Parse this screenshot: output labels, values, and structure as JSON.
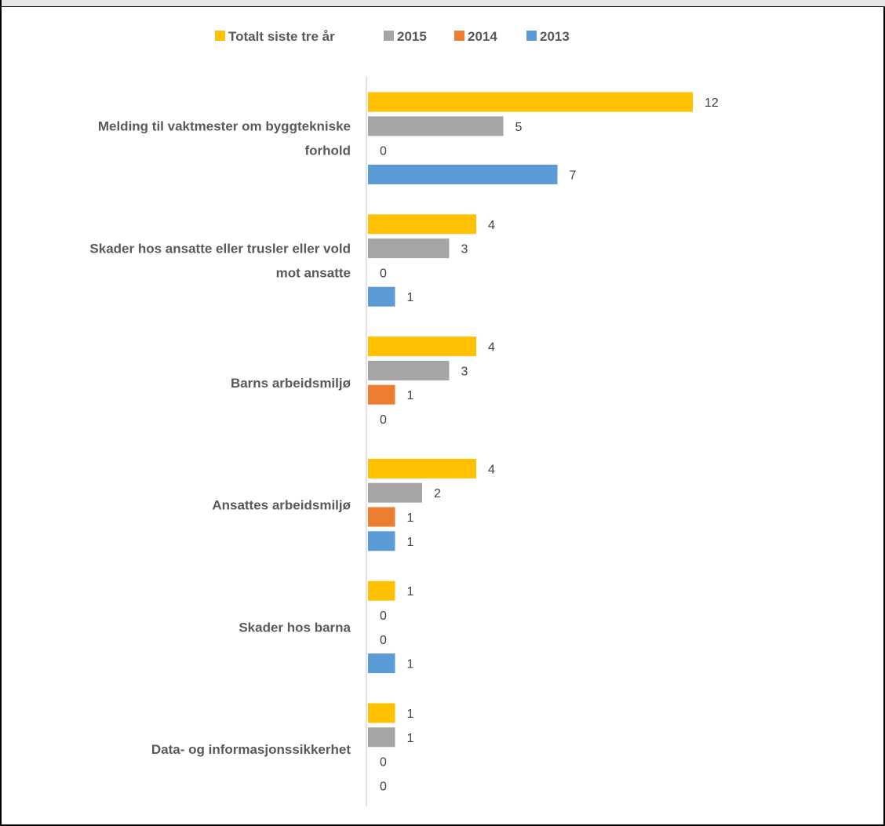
{
  "chart_data": {
    "type": "bar",
    "orientation": "horizontal",
    "categories": [
      [
        "Melding til vaktmester om byggtekniske",
        "forhold"
      ],
      [
        "Skader hos ansatte eller trusler eller vold",
        "mot ansatte"
      ],
      [
        "Barns arbeidsmiljø"
      ],
      [
        "Ansattes arbeidsmiljø"
      ],
      [
        "Skader hos barna"
      ],
      [
        "Data- og informasjonssikkerhet"
      ]
    ],
    "series": [
      {
        "name": "Totalt siste tre år",
        "color": "#ffc000",
        "values": [
          12,
          4,
          4,
          4,
          1,
          1
        ]
      },
      {
        "name": "2015",
        "color": "#a5a5a5",
        "values": [
          5,
          3,
          3,
          2,
          0,
          1
        ]
      },
      {
        "name": "2014",
        "color": "#ed7d31",
        "values": [
          0,
          0,
          1,
          1,
          0,
          0
        ]
      },
      {
        "name": "2013",
        "color": "#5b9bd5",
        "values": [
          7,
          1,
          0,
          1,
          1,
          0
        ]
      }
    ],
    "legend_position": "top",
    "grid": false,
    "xlim": [
      0,
      12
    ]
  }
}
